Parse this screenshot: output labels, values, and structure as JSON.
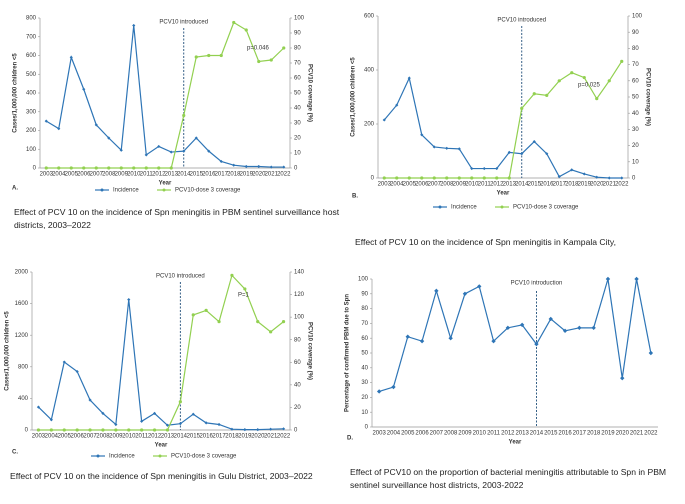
{
  "chart_data": [
    {
      "type": "line",
      "panel": "A.",
      "caption": "Effect of PCV 10 on the incidence of Spn meningitis in PBM sentinel surveillance host districts, 2003–2022",
      "categories": [
        "2003",
        "2004",
        "2005",
        "2006",
        "2007",
        "2008",
        "2009",
        "2010",
        "2011",
        "2012",
        "2013",
        "2014",
        "2015",
        "2016",
        "2017",
        "2018",
        "2019",
        "2020",
        "2021",
        "2022"
      ],
      "xlabel": "Year",
      "ylabel": "Cases/1,000,000 children <5",
      "y2label": "PCV10 coverage (%)",
      "ylim": [
        0,
        800
      ],
      "yticks": [
        0,
        100,
        200,
        300,
        400,
        500,
        600,
        700,
        800
      ],
      "y2lim": [
        0,
        100
      ],
      "y2ticks": [
        0,
        10,
        20,
        30,
        40,
        50,
        60,
        70,
        80,
        90,
        100
      ],
      "series": [
        {
          "name": "Incidence",
          "color": "#2e75b6",
          "values": [
            250,
            210,
            590,
            420,
            230,
            160,
            95,
            760,
            70,
            115,
            85,
            90,
            160,
            90,
            35,
            15,
            8,
            8,
            5,
            5
          ]
        },
        {
          "name": "PCV10-dose 3 coverage",
          "color": "#92d050",
          "axis": "y2",
          "values": [
            0,
            0,
            0,
            0,
            0,
            0,
            0,
            0,
            0,
            0,
            0,
            35,
            74,
            75,
            75,
            97,
            92,
            71,
            72,
            80
          ]
        }
      ],
      "vline": {
        "x": "2014",
        "label": "PCV10 introduced"
      },
      "annotation": "p=0.046"
    },
    {
      "type": "line",
      "panel": "B.",
      "caption": "Effect of PCV 10 on the incidence of Spn meningitis in Kampala City,",
      "categories": [
        "2003",
        "2004",
        "2005",
        "2006",
        "2007",
        "2008",
        "2009",
        "2010",
        "2011",
        "2012",
        "2013",
        "2014",
        "2015",
        "2016",
        "2017",
        "2018",
        "2019",
        "2020",
        "2021",
        "2022"
      ],
      "xlabel": "Year",
      "ylabel": "Cases/1,000,000 children <5",
      "y2label": "PCV10 coverage (%)",
      "ylim": [
        0,
        600
      ],
      "yticks": [
        0,
        200,
        400,
        600
      ],
      "y2lim": [
        0,
        100
      ],
      "y2ticks": [
        0,
        10,
        20,
        30,
        40,
        50,
        60,
        70,
        80,
        90,
        100
      ],
      "series": [
        {
          "name": "Incidence",
          "color": "#2e75b6",
          "values": [
            215,
            270,
            370,
            160,
            115,
            110,
            108,
            35,
            35,
            35,
            95,
            90,
            135,
            90,
            5,
            30,
            15,
            3,
            0,
            0
          ]
        },
        {
          "name": "PCV10-dose 3 coverage",
          "color": "#92d050",
          "axis": "y2",
          "values": [
            0,
            0,
            0,
            0,
            0,
            0,
            0,
            0,
            0,
            0,
            0,
            43,
            52,
            51,
            60,
            65,
            62,
            49,
            60,
            72
          ]
        }
      ],
      "vline": {
        "x": "2014",
        "label": "PCV10 introduced"
      },
      "annotation": "p=0.025"
    },
    {
      "type": "line",
      "panel": "C.",
      "caption": "Effect of PCV 10 on the incidence of Spn meningitis in Gulu District, 2003–2022",
      "categories": [
        "2003",
        "2004",
        "2005",
        "2006",
        "2007",
        "2008",
        "2009",
        "2010",
        "2011",
        "2012",
        "2013",
        "2014",
        "2015",
        "2016",
        "2017",
        "2018",
        "2019",
        "2020",
        "2021",
        "2022"
      ],
      "xlabel": "Year",
      "ylabel": "Cases/1,000,000 children <5",
      "y2label": "PCV10 coverage (%)",
      "ylim": [
        0,
        2000
      ],
      "yticks": [
        0,
        400,
        800,
        1200,
        1600,
        2000
      ],
      "y2lim": [
        0,
        140
      ],
      "y2ticks": [
        0,
        20,
        40,
        60,
        80,
        100,
        120,
        140
      ],
      "series": [
        {
          "name": "Incidence",
          "color": "#2e75b6",
          "values": [
            290,
            130,
            860,
            740,
            380,
            210,
            70,
            1650,
            110,
            210,
            60,
            80,
            200,
            90,
            70,
            10,
            5,
            5,
            10,
            15
          ]
        },
        {
          "name": "PCV10-dose 3 coverage",
          "color": "#92d050",
          "axis": "y2",
          "values": [
            0,
            0,
            0,
            0,
            0,
            0,
            0,
            0,
            0,
            0,
            0,
            25,
            102,
            106,
            96,
            137,
            125,
            96,
            87,
            96
          ]
        }
      ],
      "vline": {
        "x": "2014",
        "label": "PCV10 introduced"
      },
      "annotation": "P=1"
    },
    {
      "type": "line",
      "panel": "D.",
      "caption": "Effect of PCV10 on the proportion of bacterial meningitis attributable to Spn in PBM sentinel surveillance host districts, 2003-2022",
      "categories": [
        "2003",
        "2004",
        "2005",
        "2006",
        "2007",
        "2008",
        "2009",
        "2010",
        "2011",
        "2012",
        "2013",
        "2014",
        "2015",
        "2016",
        "2017",
        "2018",
        "2019",
        "2020",
        "2021",
        "2022"
      ],
      "xlabel": "Year",
      "ylabel": "Percentage of confirmed PBM due to Spn",
      "ylim": [
        0,
        100
      ],
      "yticks": [
        0,
        10,
        20,
        30,
        40,
        50,
        60,
        70,
        80,
        90,
        100
      ],
      "series": [
        {
          "color": "#2e75b6",
          "values": [
            24,
            27,
            61,
            58,
            92,
            60,
            90,
            95,
            58,
            67,
            69,
            56,
            73,
            65,
            67,
            67,
            100,
            33,
            100,
            50
          ]
        }
      ],
      "vline": {
        "x": "2014",
        "label": "PCV10 introduction"
      }
    }
  ]
}
